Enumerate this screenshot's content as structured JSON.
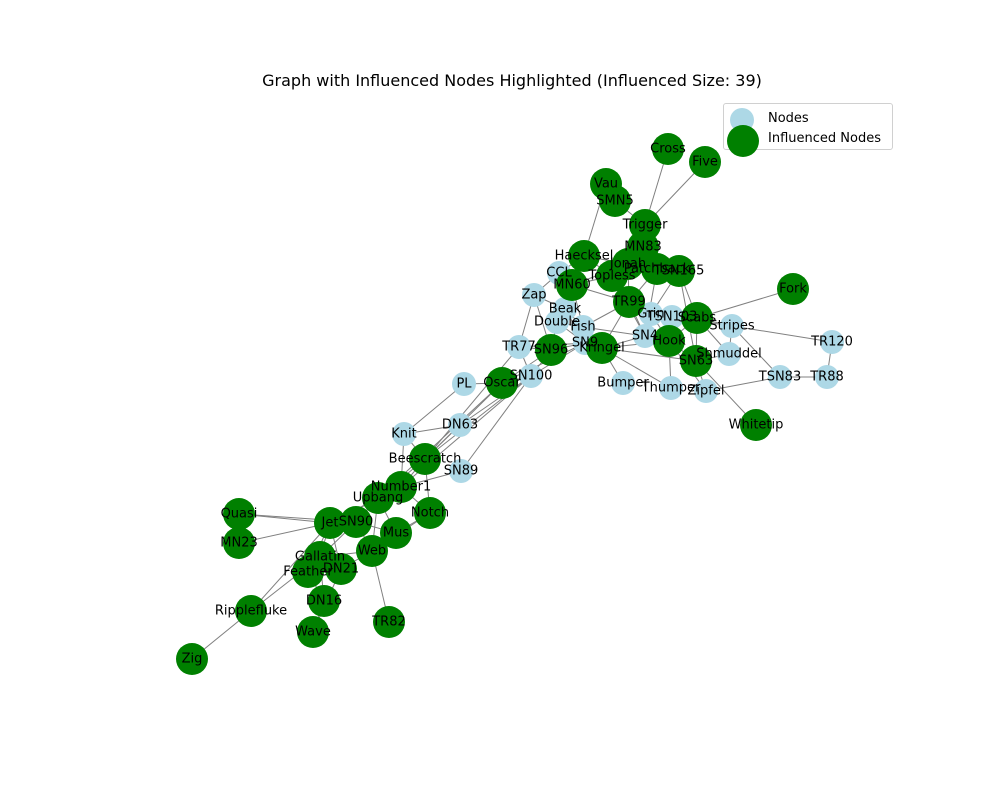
{
  "title": "Graph with Influenced Nodes Highlighted (Influenced Size: 39)",
  "legend": {
    "nodes_label": "Nodes",
    "influenced_label": "Influenced Nodes"
  },
  "colors": {
    "node": "#add8e6",
    "influenced": "#008000",
    "edge": "#808080",
    "label": "#000000"
  },
  "nodes": [
    {
      "id": "Cross",
      "influenced": true
    },
    {
      "id": "Five",
      "influenced": true
    },
    {
      "id": "Vau",
      "influenced": true
    },
    {
      "id": "SMN5",
      "influenced": true
    },
    {
      "id": "Trigger",
      "influenced": true
    },
    {
      "id": "MN83",
      "influenced": true
    },
    {
      "id": "Haecksel",
      "influenced": true
    },
    {
      "id": "Jonah",
      "influenced": true
    },
    {
      "id": "Patchback",
      "influenced": true
    },
    {
      "id": "TSN165",
      "influenced": true
    },
    {
      "id": "CCL",
      "influenced": false
    },
    {
      "id": "MN60",
      "influenced": true
    },
    {
      "id": "Topless",
      "influenced": true
    },
    {
      "id": "Zap",
      "influenced": false
    },
    {
      "id": "Fork",
      "influenced": true
    },
    {
      "id": "TR99",
      "influenced": true
    },
    {
      "id": "Beak",
      "influenced": false
    },
    {
      "id": "Grin",
      "influenced": false
    },
    {
      "id": "TSN103",
      "influenced": false
    },
    {
      "id": "Scabs",
      "influenced": true
    },
    {
      "id": "Double",
      "influenced": false
    },
    {
      "id": "Fish",
      "influenced": false
    },
    {
      "id": "Stripes",
      "influenced": false
    },
    {
      "id": "SN4",
      "influenced": false
    },
    {
      "id": "TR120",
      "influenced": false
    },
    {
      "id": "Hook",
      "influenced": true
    },
    {
      "id": "TR77",
      "influenced": false
    },
    {
      "id": "SN96",
      "influenced": true
    },
    {
      "id": "SN9",
      "influenced": false
    },
    {
      "id": "Kringel",
      "influenced": true
    },
    {
      "id": "Shmuddel",
      "influenced": false
    },
    {
      "id": "SN63",
      "influenced": true
    },
    {
      "id": "SN100",
      "influenced": false
    },
    {
      "id": "TSN83",
      "influenced": false
    },
    {
      "id": "TR88",
      "influenced": false
    },
    {
      "id": "PL",
      "influenced": false
    },
    {
      "id": "Oscar",
      "influenced": true
    },
    {
      "id": "Bumper",
      "influenced": false
    },
    {
      "id": "Thumper",
      "influenced": false
    },
    {
      "id": "Zipfel",
      "influenced": false
    },
    {
      "id": "DN63",
      "influenced": false
    },
    {
      "id": "Whitetip",
      "influenced": true
    },
    {
      "id": "Knit",
      "influenced": false
    },
    {
      "id": "Beescratch",
      "influenced": true
    },
    {
      "id": "SN89",
      "influenced": false
    },
    {
      "id": "Number1",
      "influenced": true
    },
    {
      "id": "Upbang",
      "influenced": true
    },
    {
      "id": "Notch",
      "influenced": true
    },
    {
      "id": "Quasi",
      "influenced": true
    },
    {
      "id": "Jet",
      "influenced": true
    },
    {
      "id": "SN90",
      "influenced": true
    },
    {
      "id": "Mus",
      "influenced": true
    },
    {
      "id": "MN23",
      "influenced": true
    },
    {
      "id": "Gallatin",
      "influenced": true
    },
    {
      "id": "Web",
      "influenced": true
    },
    {
      "id": "Feather",
      "influenced": true
    },
    {
      "id": "DN21",
      "influenced": true
    },
    {
      "id": "DN16",
      "influenced": true
    },
    {
      "id": "Ripplefluke",
      "influenced": true
    },
    {
      "id": "TR82",
      "influenced": true
    },
    {
      "id": "Wave",
      "influenced": true
    },
    {
      "id": "Zig",
      "influenced": true
    }
  ],
  "edges": [
    [
      "Cross",
      "Trigger"
    ],
    [
      "Five",
      "Trigger"
    ],
    [
      "Vau",
      "SMN5"
    ],
    [
      "Vau",
      "Haecksel"
    ],
    [
      "SMN5",
      "Trigger"
    ],
    [
      "Trigger",
      "MN83"
    ],
    [
      "Trigger",
      "Jonah"
    ],
    [
      "Trigger",
      "Patchback"
    ],
    [
      "MN83",
      "Patchback"
    ],
    [
      "MN83",
      "Topless"
    ],
    [
      "Haecksel",
      "CCL"
    ],
    [
      "Haecksel",
      "Jonah"
    ],
    [
      "Haecksel",
      "MN60"
    ],
    [
      "Haecksel",
      "Topless"
    ],
    [
      "Jonah",
      "Patchback"
    ],
    [
      "Jonah",
      "MN60"
    ],
    [
      "Jonah",
      "TR99"
    ],
    [
      "Jonah",
      "Topless"
    ],
    [
      "Patchback",
      "TSN165"
    ],
    [
      "Patchback",
      "Topless"
    ],
    [
      "Patchback",
      "SN4"
    ],
    [
      "Patchback",
      "TR99"
    ],
    [
      "TSN165",
      "Scabs"
    ],
    [
      "TSN165",
      "SN63"
    ],
    [
      "TSN165",
      "Grin"
    ],
    [
      "CCL",
      "MN60"
    ],
    [
      "CCL",
      "Zap"
    ],
    [
      "MN60",
      "Topless"
    ],
    [
      "MN60",
      "Beak"
    ],
    [
      "MN60",
      "Fish"
    ],
    [
      "MN60",
      "TR99"
    ],
    [
      "Topless",
      "TR99"
    ],
    [
      "Topless",
      "SN4"
    ],
    [
      "Zap",
      "Beak"
    ],
    [
      "Zap",
      "SN96"
    ],
    [
      "Zap",
      "TR77"
    ],
    [
      "Fork",
      "Scabs"
    ],
    [
      "TR99",
      "Grin"
    ],
    [
      "TR99",
      "SN4"
    ],
    [
      "TR99",
      "Kringel"
    ],
    [
      "TR99",
      "Fish"
    ],
    [
      "Beak",
      "Fish"
    ],
    [
      "Beak",
      "Double"
    ],
    [
      "Beak",
      "SN9"
    ],
    [
      "Grin",
      "TSN103"
    ],
    [
      "Grin",
      "Scabs"
    ],
    [
      "Grin",
      "SN4"
    ],
    [
      "Grin",
      "Hook"
    ],
    [
      "TSN103",
      "Scabs"
    ],
    [
      "TSN103",
      "Stripes"
    ],
    [
      "Scabs",
      "Stripes"
    ],
    [
      "Scabs",
      "Hook"
    ],
    [
      "Scabs",
      "SN63"
    ],
    [
      "Scabs",
      "Shmuddel"
    ],
    [
      "Double",
      "Fish"
    ],
    [
      "Double",
      "SN96"
    ],
    [
      "Double",
      "SN9"
    ],
    [
      "Fish",
      "SN4"
    ],
    [
      "Fish",
      "Kringel"
    ],
    [
      "Stripes",
      "TR120"
    ],
    [
      "Stripes",
      "Shmuddel"
    ],
    [
      "Stripes",
      "TSN83"
    ],
    [
      "SN4",
      "Hook"
    ],
    [
      "SN4",
      "Kringel"
    ],
    [
      "Hook",
      "SN63"
    ],
    [
      "Hook",
      "Kringel"
    ],
    [
      "Hook",
      "Zipfel"
    ],
    [
      "Hook",
      "Thumper"
    ],
    [
      "TR77",
      "SN96"
    ],
    [
      "TR77",
      "SN100"
    ],
    [
      "TR77",
      "SN9"
    ],
    [
      "TR77",
      "Beescratch"
    ],
    [
      "SN96",
      "SN9"
    ],
    [
      "SN96",
      "Oscar"
    ],
    [
      "SN96",
      "SN100"
    ],
    [
      "SN9",
      "Kringel"
    ],
    [
      "SN9",
      "SN100"
    ],
    [
      "Kringel",
      "Bumper"
    ],
    [
      "Kringel",
      "Thumper"
    ],
    [
      "Kringel",
      "SN63"
    ],
    [
      "Shmuddel",
      "SN63"
    ],
    [
      "SN63",
      "Whitetip"
    ],
    [
      "SN63",
      "Zipfel"
    ],
    [
      "TSN83",
      "TR88"
    ],
    [
      "TSN83",
      "Zipfel"
    ],
    [
      "TR120",
      "TR88"
    ],
    [
      "SN100",
      "Oscar"
    ],
    [
      "SN100",
      "Beescratch"
    ],
    [
      "SN100",
      "Number1"
    ],
    [
      "PL",
      "Oscar"
    ],
    [
      "PL",
      "Knit"
    ],
    [
      "Oscar",
      "Beescratch"
    ],
    [
      "Oscar",
      "Upbang"
    ],
    [
      "Oscar",
      "SN9"
    ],
    [
      "DN63",
      "Knit"
    ],
    [
      "DN63",
      "Beescratch"
    ],
    [
      "DN63",
      "SN100"
    ],
    [
      "Knit",
      "Beescratch"
    ],
    [
      "Knit",
      "Number1"
    ],
    [
      "Beescratch",
      "Number1"
    ],
    [
      "Beescratch",
      "Upbang"
    ],
    [
      "Beescratch",
      "Notch"
    ],
    [
      "SN89",
      "Number1"
    ],
    [
      "SN89",
      "SN100"
    ],
    [
      "Number1",
      "Upbang"
    ],
    [
      "Number1",
      "Notch"
    ],
    [
      "Number1",
      "Jet"
    ],
    [
      "Upbang",
      "SN90"
    ],
    [
      "Upbang",
      "Mus"
    ],
    [
      "Upbang",
      "Jet"
    ],
    [
      "Upbang",
      "Web"
    ],
    [
      "Notch",
      "Mus"
    ],
    [
      "Notch",
      "Web"
    ],
    [
      "Quasi",
      "Jet"
    ],
    [
      "Quasi",
      "SN90"
    ],
    [
      "MN23",
      "Jet"
    ],
    [
      "Jet",
      "SN90"
    ],
    [
      "Jet",
      "Gallatin"
    ],
    [
      "Jet",
      "Feather"
    ],
    [
      "Jet",
      "DN21"
    ],
    [
      "SN90",
      "Mus"
    ],
    [
      "SN90",
      "Web"
    ],
    [
      "SN90",
      "Gallatin"
    ],
    [
      "Mus",
      "Web"
    ],
    [
      "Web",
      "Gallatin"
    ],
    [
      "Web",
      "TR82"
    ],
    [
      "Web",
      "DN21"
    ],
    [
      "Gallatin",
      "Feather"
    ],
    [
      "Gallatin",
      "DN21"
    ],
    [
      "Gallatin",
      "DN16"
    ],
    [
      "Gallatin",
      "Ripplefluke"
    ],
    [
      "Feather",
      "DN21"
    ],
    [
      "Feather",
      "DN16"
    ],
    [
      "Ripplefluke",
      "Zig"
    ],
    [
      "Ripplefluke",
      "Jet"
    ],
    [
      "DN21",
      "Wave"
    ],
    [
      "DN16",
      "Wave"
    ]
  ]
}
